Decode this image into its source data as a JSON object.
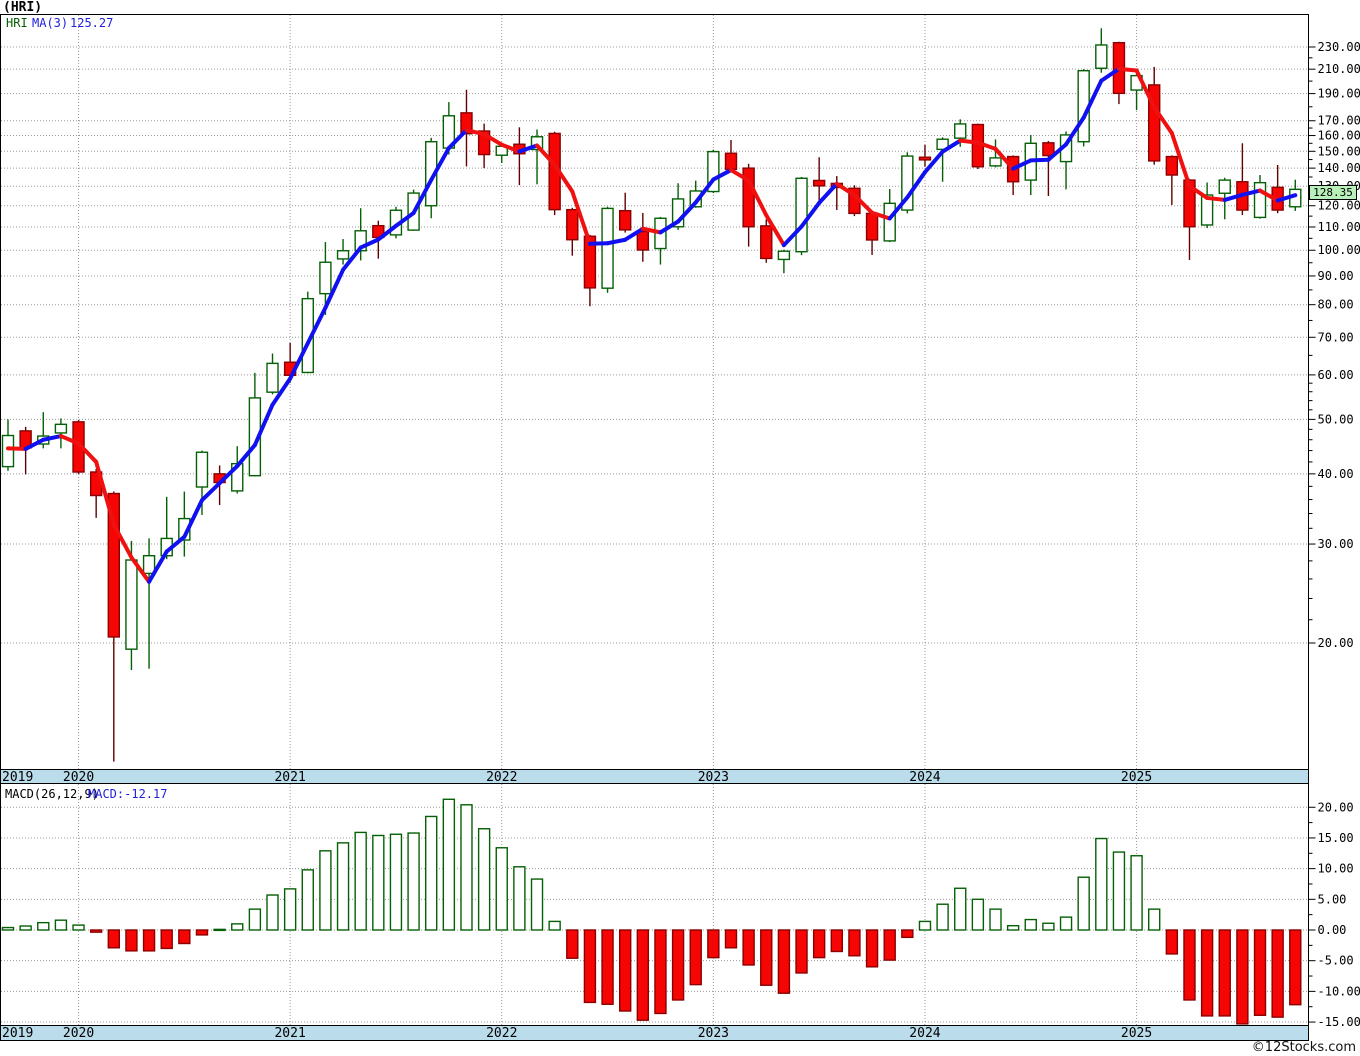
{
  "title": "(HRI)",
  "watermark": "©12Stocks.com",
  "price_panel": {
    "legend": {
      "symbol": "HRI",
      "ma_label": "MA(3)",
      "ma_value": "125.27"
    },
    "axis_labels": [
      "230.00",
      "210.00",
      "190.00",
      "170.00",
      "160.00",
      "150.00",
      "140.00",
      "130.00",
      "120.00",
      "110.00",
      "100.00",
      "90.00",
      "80.00",
      "70.00",
      "60.00",
      "50.00",
      "40.00",
      "30.00",
      "20.00"
    ],
    "axis_minor_ticks": [
      220,
      200,
      180,
      165,
      155,
      145,
      135,
      125,
      115,
      105,
      95,
      85,
      75,
      65,
      58,
      56,
      54,
      52,
      48,
      46,
      44,
      42,
      38,
      36,
      34,
      32,
      28,
      26,
      24,
      22
    ],
    "last_price_label": "128.35"
  },
  "macd_panel": {
    "legend": {
      "name": "MACD(26,12,9)",
      "value_label": "MACD:-12.17"
    },
    "axis_labels": [
      "20.00",
      "15.00",
      "10.00",
      "5.00",
      "0.00",
      "-5.00",
      "-10.00",
      "-15.00"
    ],
    "axis_minor_ticks": [
      17.5,
      12.5,
      7.5,
      2.5,
      -2.5,
      -7.5,
      -12.5
    ]
  },
  "x_axis": {
    "years": [
      {
        "label": "2019",
        "month_index": 0
      },
      {
        "label": "2020",
        "month_index": 4
      },
      {
        "label": "2021",
        "month_index": 16
      },
      {
        "label": "2022",
        "month_index": 28
      },
      {
        "label": "2023",
        "month_index": 40
      },
      {
        "label": "2024",
        "month_index": 52
      },
      {
        "label": "2025",
        "month_index": 64
      }
    ]
  },
  "colors": {
    "background": "#FFFFFF",
    "panel_border": "#000000",
    "grid": "#999999",
    "axis_text": "#000000",
    "strip_bg": "#BADCEB",
    "candle_up_stroke": "#056005",
    "candle_up_fill": "#FFFFFF",
    "candle_down_fill": "#F60505",
    "candle_down_stroke": "#8B0000",
    "wick_up": "#056005",
    "wick_down": "#600000",
    "ma_up": "#1010F0",
    "ma_down": "#F01010",
    "legend_symbol": "#056005",
    "legend_value": "#2020DD",
    "price_tag_bg": "#B9EFB9",
    "watermark": "#111111"
  },
  "chart_data": {
    "type": "candlestick",
    "title": "(HRI) monthly candlesticks with MA(3) overlay and MACD(26,12,9) histogram",
    "symbol": "HRI",
    "interval": "monthly",
    "price_scale": "log",
    "price_axis_gridlines": [
      230,
      210,
      190,
      170,
      160,
      150,
      140,
      130,
      120,
      110,
      100,
      90,
      80,
      70,
      60,
      50,
      40,
      30,
      20
    ],
    "macd_axis_gridlines": [
      20,
      15,
      10,
      5,
      0,
      -5,
      -10,
      -15
    ],
    "last_close": 128.35,
    "last_ma3": 125.27,
    "last_macd": -12.17,
    "months": [
      "2019-09",
      "2019-10",
      "2019-11",
      "2019-12",
      "2020-01",
      "2020-02",
      "2020-03",
      "2020-04",
      "2020-05",
      "2020-06",
      "2020-07",
      "2020-08",
      "2020-09",
      "2020-10",
      "2020-11",
      "2020-12",
      "2021-01",
      "2021-02",
      "2021-03",
      "2021-04",
      "2021-05",
      "2021-06",
      "2021-07",
      "2021-08",
      "2021-09",
      "2021-10",
      "2021-11",
      "2021-12",
      "2022-01",
      "2022-02",
      "2022-03",
      "2022-04",
      "2022-05",
      "2022-06",
      "2022-07",
      "2022-08",
      "2022-09",
      "2022-10",
      "2022-11",
      "2022-12",
      "2023-01",
      "2023-02",
      "2023-03",
      "2023-04",
      "2023-05",
      "2023-06",
      "2023-07",
      "2023-08",
      "2023-09",
      "2023-10",
      "2023-11",
      "2023-12",
      "2024-01",
      "2024-02",
      "2024-03",
      "2024-04",
      "2024-05",
      "2024-06",
      "2024-07",
      "2024-08",
      "2024-09",
      "2024-10",
      "2024-11",
      "2024-12",
      "2025-01",
      "2025-02",
      "2025-03",
      "2025-04",
      "2025-05",
      "2025-06",
      "2025-07",
      "2025-08",
      "2025-09",
      "2025-10"
    ],
    "ohlc": [
      [
        41.2,
        50.0,
        40.5,
        46.8
      ],
      [
        47.7,
        48.5,
        39.9,
        44.5
      ],
      [
        45.2,
        51.5,
        44.4,
        46.7
      ],
      [
        47.3,
        50.2,
        44.4,
        49.0
      ],
      [
        49.5,
        49.9,
        40.0,
        40.3
      ],
      [
        40.3,
        40.8,
        33.4,
        36.6
      ],
      [
        36.9,
        37.2,
        12.3,
        20.5
      ],
      [
        19.5,
        30.4,
        17.9,
        28.1
      ],
      [
        26.6,
        30.7,
        18.0,
        28.6
      ],
      [
        28.6,
        36.4,
        28.2,
        30.7
      ],
      [
        30.5,
        37.2,
        28.5,
        33.3
      ],
      [
        37.9,
        44.0,
        33.8,
        43.7
      ],
      [
        40.0,
        41.4,
        35.2,
        38.6
      ],
      [
        37.3,
        44.8,
        36.9,
        41.7
      ],
      [
        39.7,
        60.5,
        39.6,
        54.6
      ],
      [
        55.9,
        65.5,
        55.4,
        62.9
      ],
      [
        63.2,
        68.4,
        58.1,
        59.9
      ],
      [
        60.6,
        84.4,
        60.4,
        82.0
      ],
      [
        83.7,
        103.4,
        76.7,
        95.2
      ],
      [
        96.5,
        104.7,
        94.3,
        99.8
      ],
      [
        99.8,
        118.8,
        95.9,
        108.3
      ],
      [
        110.6,
        112.9,
        96.6,
        105.4
      ],
      [
        106.5,
        119.5,
        105.0,
        117.8
      ],
      [
        108.6,
        128.2,
        108.3,
        126.4
      ],
      [
        120.0,
        158.5,
        114.0,
        156.0
      ],
      [
        152.0,
        183.5,
        148.0,
        173.5
      ],
      [
        175.6,
        193.0,
        141.0,
        161.2
      ],
      [
        163.0,
        168.0,
        140.0,
        148.0
      ],
      [
        147.6,
        155.5,
        143.0,
        153.1
      ],
      [
        154.4,
        165.5,
        130.6,
        148.5
      ],
      [
        151.1,
        164.0,
        131.0,
        159.2
      ],
      [
        161.4,
        162.5,
        115.5,
        118.1
      ],
      [
        118.1,
        119.0,
        97.8,
        104.4
      ],
      [
        105.9,
        106.5,
        79.5,
        85.7
      ],
      [
        85.6,
        119.5,
        84.0,
        118.7
      ],
      [
        117.6,
        126.6,
        107.5,
        108.7
      ],
      [
        108.0,
        116.5,
        95.4,
        100.1
      ],
      [
        100.7,
        114.6,
        94.3,
        114.0
      ],
      [
        110.1,
        131.6,
        108.7,
        123.4
      ],
      [
        119.5,
        133.0,
        119.0,
        127.5
      ],
      [
        127.2,
        151.0,
        126.4,
        149.8
      ],
      [
        148.8,
        157.1,
        137.5,
        139.3
      ],
      [
        140.0,
        142.5,
        101.5,
        110.1
      ],
      [
        110.5,
        113.5,
        95.0,
        96.7
      ],
      [
        96.3,
        100.2,
        91.0,
        99.6
      ],
      [
        99.4,
        135.0,
        98.0,
        134.3
      ],
      [
        133.1,
        146.4,
        120.3,
        130.2
      ],
      [
        131.5,
        135.5,
        117.9,
        129.3
      ],
      [
        128.9,
        130.5,
        115.0,
        116.3
      ],
      [
        116.3,
        116.8,
        98.1,
        104.3
      ],
      [
        103.9,
        128.5,
        103.4,
        121.2
      ],
      [
        117.9,
        149.4,
        116.3,
        147.1
      ],
      [
        146.4,
        154.0,
        140.8,
        144.8
      ],
      [
        151.2,
        158.8,
        132.4,
        157.6
      ],
      [
        158.3,
        171.0,
        152.8,
        167.8
      ],
      [
        167.4,
        168.0,
        139.5,
        140.8
      ],
      [
        141.3,
        157.5,
        140.5,
        146.0
      ],
      [
        146.8,
        147.5,
        125.4,
        132.4
      ],
      [
        133.3,
        160.4,
        125.4,
        155.0
      ],
      [
        155.3,
        156.5,
        124.9,
        147.4
      ],
      [
        143.8,
        162.7,
        128.3,
        160.4
      ],
      [
        156.0,
        210.0,
        153.0,
        208.7
      ],
      [
        210.8,
        248.3,
        207.0,
        231.9
      ],
      [
        234.1,
        235.0,
        182.0,
        190.2
      ],
      [
        192.8,
        206.0,
        177.6,
        204.5
      ],
      [
        196.9,
        212.0,
        142.0,
        144.2
      ],
      [
        146.8,
        147.5,
        120.4,
        136.1
      ],
      [
        133.3,
        134.0,
        96.1,
        110.1
      ],
      [
        110.9,
        132.0,
        109.5,
        125.4
      ],
      [
        126.3,
        134.6,
        113.5,
        133.3
      ],
      [
        132.4,
        155.0,
        115.5,
        117.9
      ],
      [
        114.4,
        136.1,
        113.8,
        131.9
      ],
      [
        129.4,
        141.8,
        116.4,
        117.9
      ],
      [
        119.5,
        133.5,
        117.5,
        128.35
      ]
    ],
    "ma3": [
      44.4,
      44.3,
      46.0,
      46.7,
      45.3,
      42.0,
      32.5,
      28.4,
      25.7,
      29.1,
      30.9,
      35.9,
      38.5,
      41.3,
      45.0,
      53.1,
      59.1,
      68.3,
      79.0,
      92.3,
      101.1,
      104.5,
      110.5,
      116.5,
      133.4,
      152.0,
      163.6,
      160.9,
      154.1,
      149.9,
      153.6,
      141.9,
      127.2,
      102.7,
      102.9,
      104.4,
      109.2,
      107.6,
      112.5,
      121.6,
      133.6,
      138.9,
      133.1,
      115.4,
      102.1,
      110.2,
      121.4,
      131.3,
      125.3,
      116.6,
      113.9,
      124.2,
      137.7,
      149.8,
      156.7,
      155.4,
      151.5,
      139.7,
      144.5,
      144.9,
      154.3,
      172.2,
      200.3,
      210.3,
      208.9,
      179.6,
      161.6,
      130.1,
      123.9,
      122.9,
      125.5,
      127.7,
      122.6,
      125.3
    ],
    "macd_histogram": [
      0.4,
      0.65,
      1.2,
      1.6,
      0.8,
      -0.35,
      -2.9,
      -3.4,
      -3.4,
      -3.0,
      -2.2,
      -0.8,
      0.1,
      1.0,
      3.4,
      5.7,
      6.7,
      9.8,
      12.9,
      14.2,
      15.9,
      15.4,
      15.6,
      15.8,
      18.5,
      21.3,
      20.4,
      16.5,
      13.4,
      10.3,
      8.3,
      1.4,
      -4.6,
      -11.8,
      -12.1,
      -13.2,
      -14.7,
      -13.6,
      -11.4,
      -8.9,
      -4.5,
      -2.9,
      -5.7,
      -9.0,
      -10.3,
      -7.0,
      -4.5,
      -3.5,
      -4.2,
      -6.0,
      -4.9,
      -1.2,
      1.4,
      4.2,
      6.8,
      5.0,
      3.4,
      0.7,
      1.7,
      1.1,
      2.1,
      8.6,
      14.9,
      12.7,
      12.1,
      3.4,
      -3.9,
      -11.4,
      -14.0,
      -14.0,
      -15.3,
      -13.9,
      -14.2,
      -12.17
    ]
  }
}
